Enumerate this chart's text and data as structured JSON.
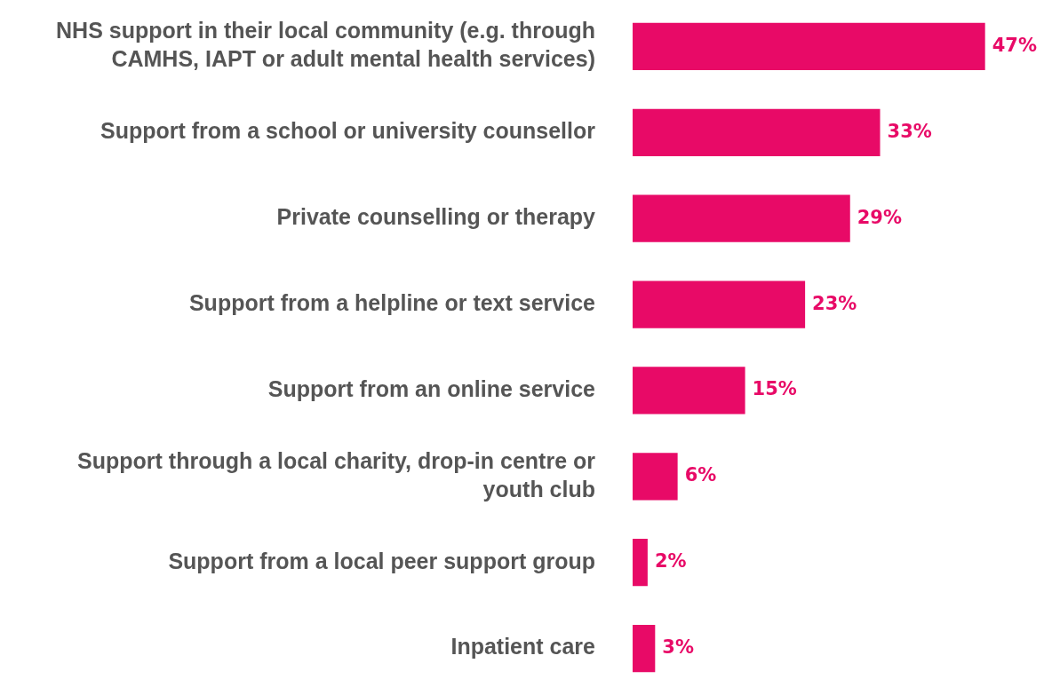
{
  "chart_data": {
    "type": "bar",
    "orientation": "horizontal",
    "categories": [
      "NHS support in their local community (e.g. through CAMHS, IAPT or adult mental health services)",
      "Support from a school or university counsellor",
      "Private counselling or therapy",
      "Support from a helpline or text service",
      "Support from an online service",
      "Support through a local charity, drop-in centre or youth club",
      "Support from a local peer support group",
      "Inpatient care"
    ],
    "values": [
      47,
      33,
      29,
      23,
      15,
      6,
      2,
      3
    ],
    "value_labels": [
      "47%",
      "33%",
      "29%",
      "23%",
      "15%",
      "6%",
      "2%",
      "3%"
    ],
    "color": "#e80a67",
    "legend": false
  }
}
